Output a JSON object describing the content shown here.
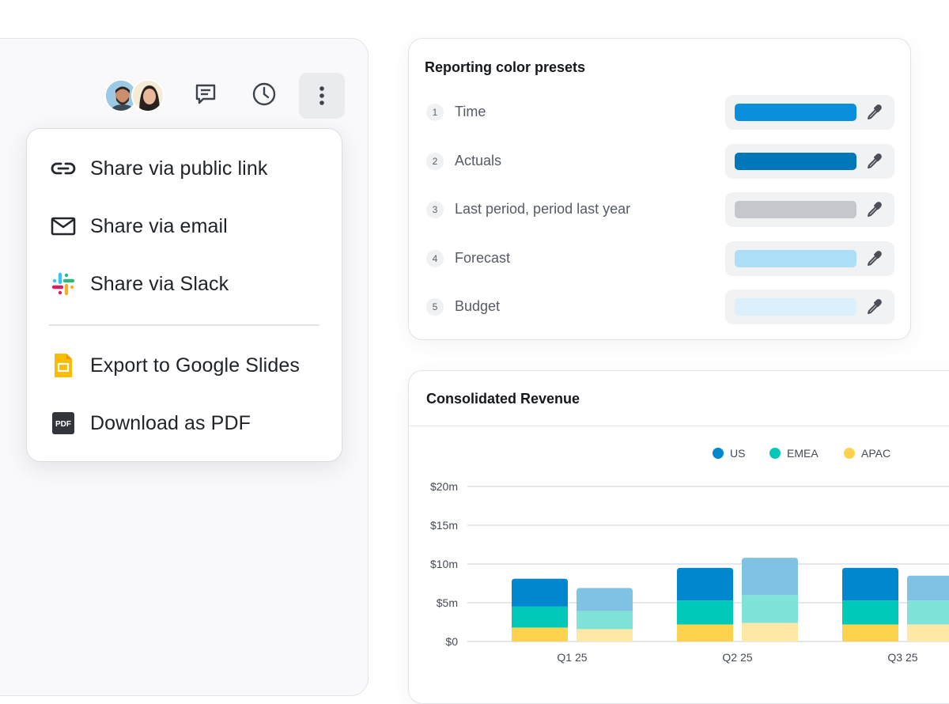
{
  "toolbar": {
    "avatars": [
      "avatar-man",
      "avatar-woman"
    ],
    "icons": [
      "comment-icon",
      "history-icon",
      "more-vertical-icon"
    ]
  },
  "share_menu": {
    "items": [
      {
        "label": "Share via public link",
        "icon": "link-icon"
      },
      {
        "label": "Share via email",
        "icon": "mail-icon"
      },
      {
        "label": "Share via Slack",
        "icon": "slack-icon"
      },
      {
        "label": "Export to Google Slides",
        "icon": "google-slides-icon"
      },
      {
        "label": "Download as PDF",
        "icon": "pdf-icon"
      }
    ]
  },
  "presets": {
    "title": "Reporting color presets",
    "rows": [
      {
        "num": "1",
        "name": "Time",
        "color": "#0a8fdc"
      },
      {
        "num": "2",
        "name": "Actuals",
        "color": "#0077b8"
      },
      {
        "num": "3",
        "name": "Last period, period last year",
        "color": "#c4c7cb"
      },
      {
        "num": "4",
        "name": "Forecast",
        "color": "#acdff7"
      },
      {
        "num": "5",
        "name": "Budget",
        "color": "#dcf0fb"
      }
    ]
  },
  "revenue": {
    "title": "Consolidated Revenue"
  },
  "chart_data": {
    "type": "bar",
    "stacked": true,
    "categories": [
      "Q1 25",
      "Q2 25",
      "Q3 25"
    ],
    "legend": [
      "US",
      "EMEA",
      "APAC"
    ],
    "legend_position": "top",
    "y_ticks": [
      "$0",
      "$5m",
      "$10m",
      "$15m",
      "$20m"
    ],
    "ylim": [
      0,
      20
    ],
    "grid": true,
    "series": [
      {
        "name": "US",
        "color": "#0087cd",
        "faded_color": "#80c2e3",
        "actual": [
          3.6,
          4.2,
          4.2
        ],
        "faded": [
          3.0,
          4.8,
          3.2
        ]
      },
      {
        "name": "EMEA",
        "color": "#00c9b9",
        "faded_color": "#7fe3da",
        "actual": [
          2.7,
          3.1,
          3.1
        ],
        "faded": [
          2.3,
          3.6,
          3.1
        ]
      },
      {
        "name": "APAC",
        "color": "#fdd24c",
        "faded_color": "#fde8a6",
        "actual": [
          1.8,
          2.2,
          2.2
        ],
        "faded": [
          1.6,
          2.4,
          2.2
        ]
      }
    ]
  }
}
